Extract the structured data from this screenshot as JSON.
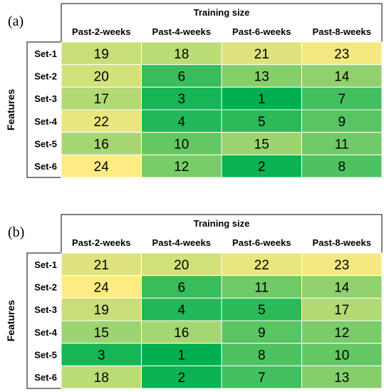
{
  "chart_data": [
    {
      "type": "heatmap",
      "panel_label": "(a)",
      "column_axis_label": "Training size",
      "row_axis_label": "Features",
      "columns": [
        "Past-2-weeks",
        "Past-4-weeks",
        "Past-6-weeks",
        "Past-8-weeks"
      ],
      "rows": [
        "Set-1",
        "Set-2",
        "Set-3",
        "Set-4",
        "Set-5",
        "Set-6"
      ],
      "values": [
        [
          19,
          18,
          21,
          23
        ],
        [
          20,
          6,
          13,
          14
        ],
        [
          17,
          3,
          1,
          7
        ],
        [
          22,
          4,
          5,
          9
        ],
        [
          16,
          10,
          15,
          11
        ],
        [
          24,
          12,
          2,
          8
        ]
      ],
      "color_scale": {
        "low": "#00b050",
        "high": "#ffeb84"
      }
    },
    {
      "type": "heatmap",
      "panel_label": "(b)",
      "column_axis_label": "Training size",
      "row_axis_label": "Features",
      "columns": [
        "Past-2-weeks",
        "Past-4-weeks",
        "Past-6-weeks",
        "Past-8-weeks"
      ],
      "rows": [
        "Set-1",
        "Set-2",
        "Set-3",
        "Set-4",
        "Set-5",
        "Set-6"
      ],
      "values": [
        [
          21,
          20,
          22,
          23
        ],
        [
          24,
          6,
          11,
          14
        ],
        [
          19,
          4,
          5,
          17
        ],
        [
          15,
          16,
          9,
          12
        ],
        [
          3,
          1,
          8,
          10
        ],
        [
          18,
          2,
          7,
          13
        ]
      ],
      "color_scale": {
        "low": "#00b050",
        "high": "#ffeb84"
      }
    }
  ]
}
